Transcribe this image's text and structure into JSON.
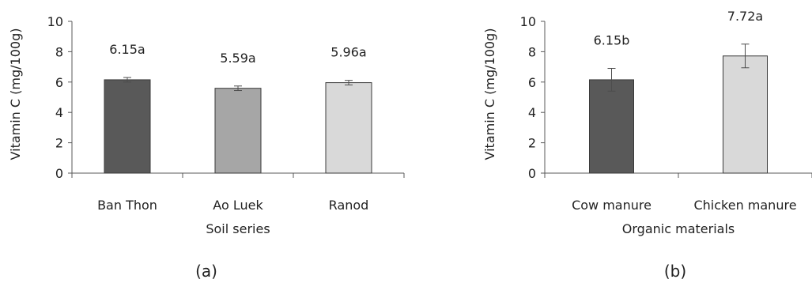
{
  "chart_data": [
    {
      "type": "bar",
      "panel_label": "(a)",
      "categories": [
        "Ban Thon",
        "Ao Luek",
        "Ranod"
      ],
      "values": [
        6.15,
        5.59,
        5.96
      ],
      "errors": [
        0.15,
        0.15,
        0.15
      ],
      "data_labels": [
        "6.15a",
        "5.59a",
        "5.96a"
      ],
      "bar_colors": [
        "#595959",
        "#a6a6a6",
        "#d9d9d9"
      ],
      "xlabel": "Soil series",
      "ylabel": "Vitamin C (mg/100g)",
      "ylim": [
        0,
        10
      ],
      "yticks": [
        0,
        2,
        4,
        6,
        8,
        10
      ],
      "grid": false
    },
    {
      "type": "bar",
      "panel_label": "(b)",
      "categories": [
        "Cow manure",
        "Chicken manure"
      ],
      "values": [
        6.15,
        7.72
      ],
      "errors": [
        0.75,
        0.78
      ],
      "data_labels": [
        "6.15b",
        "7.72a"
      ],
      "bar_colors": [
        "#595959",
        "#d9d9d9"
      ],
      "xlabel": "Organic materials",
      "ylabel": "Vitamin C (mg/100g)",
      "ylim": [
        0,
        10
      ],
      "yticks": [
        0,
        2,
        4,
        6,
        8,
        10
      ],
      "grid": false
    }
  ]
}
